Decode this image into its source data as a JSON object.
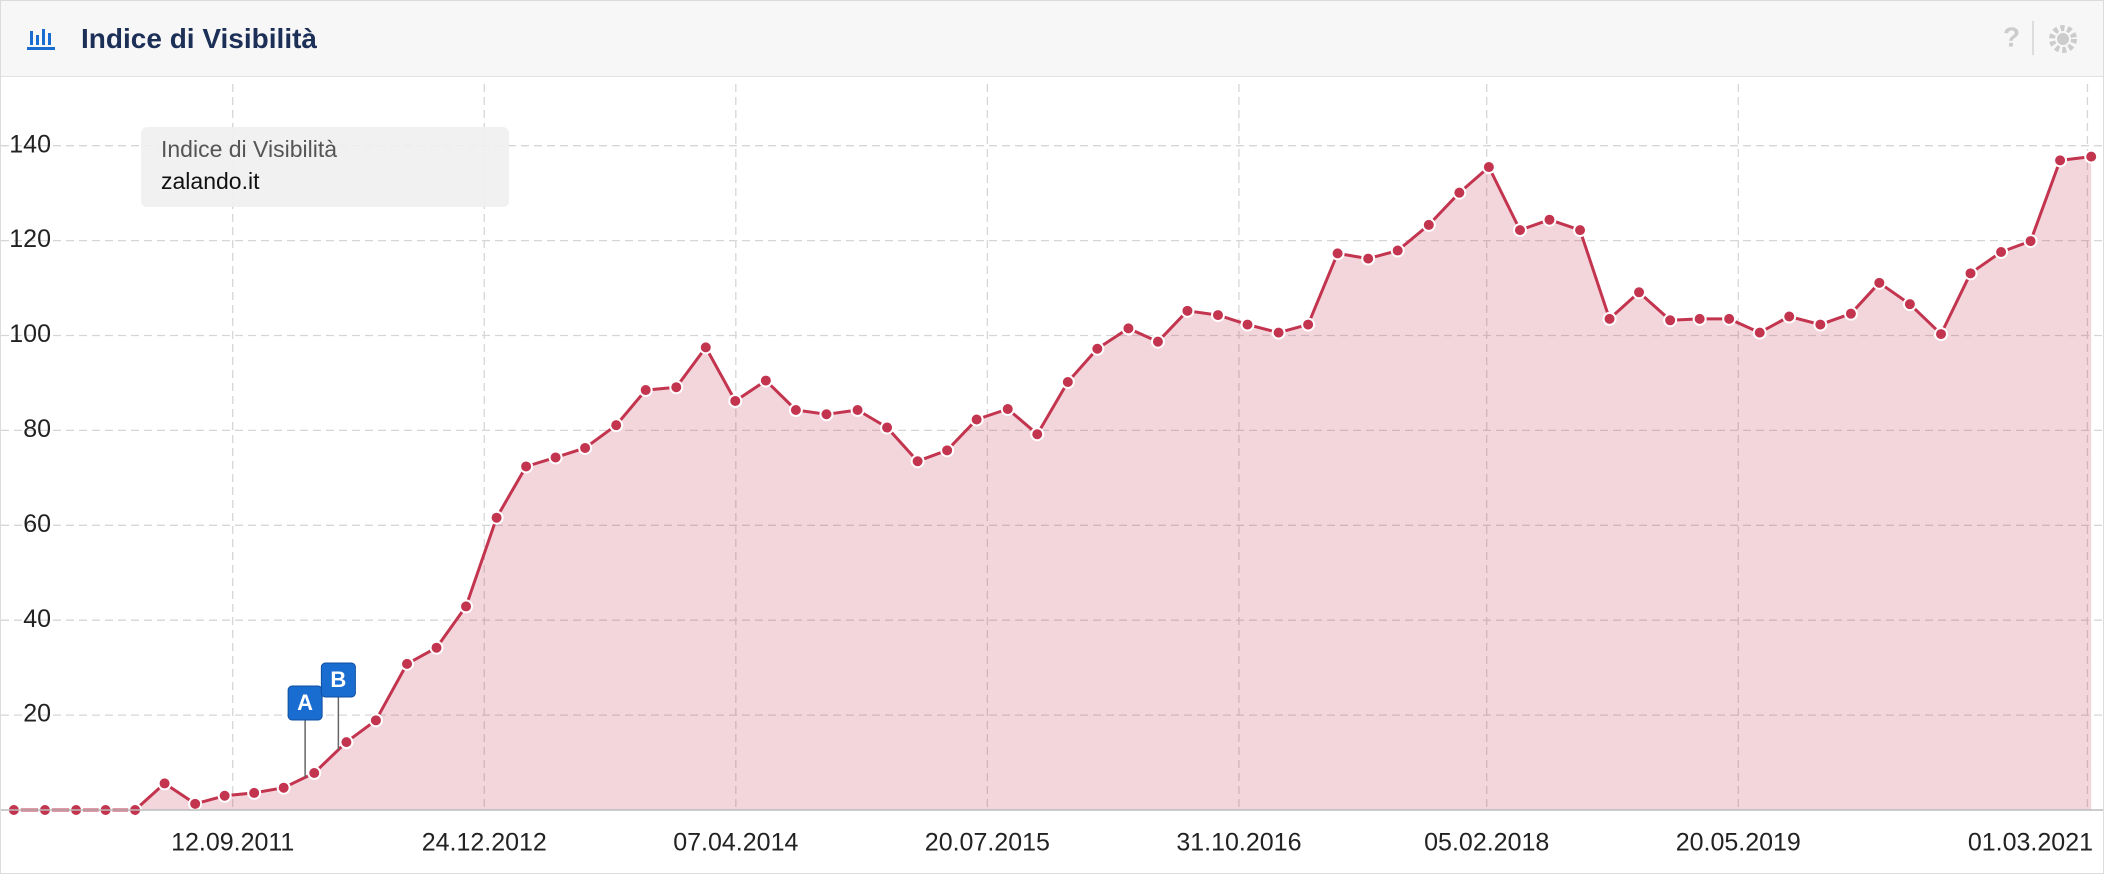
{
  "chart_data": {
    "type": "area",
    "title": "Indice di Visibilità",
    "series": [
      {
        "name": "zalando.it",
        "color": "#c3344f",
        "x": [
          "31.07.2010",
          "27.09.2010",
          "24.11.2010",
          "18.01.2011",
          "14.03.2011",
          "08.05.2011",
          "04.07.2011",
          "28.08.2011",
          "22.10.2011",
          "16.12.2011",
          "11.02.2012",
          "11.04.2012",
          "05.06.2012",
          "02.08.2012",
          "26.09.2012",
          "20.11.2012",
          "16.01.2013",
          "12.03.2013",
          "06.05.2013",
          "30.06.2013",
          "27.08.2013",
          "21.10.2013",
          "17.12.2013",
          "10.02.2014",
          "06.04.2014",
          "02.06.2014",
          "28.07.2014",
          "23.09.2014",
          "20.11.2014",
          "14.01.2015",
          "12.03.2015",
          "06.05.2015",
          "30.06.2015",
          "27.08.2015",
          "21.10.2015",
          "17.12.2015",
          "10.02.2016",
          "08.04.2016",
          "02.06.2016",
          "27.07.2016",
          "22.09.2016",
          "16.11.2016",
          "13.01.2017",
          "09.03.2017",
          "03.05.2017",
          "29.06.2017",
          "23.08.2017",
          "20.10.2017",
          "16.12.2017",
          "09.02.2018",
          "08.04.2018",
          "02.06.2018",
          "29.07.2018",
          "22.09.2018",
          "16.11.2018",
          "13.01.2019",
          "09.03.2019",
          "03.05.2019",
          "29.06.2019",
          "23.08.2019",
          "20.10.2019",
          "16.12.2019",
          "07.02.2020",
          "04.04.2020",
          "01.06.2020",
          "26.07.2020",
          "21.09.2020",
          "15.11.2020",
          "09.01.2021",
          "08.03.2021"
        ],
        "values": [
          0,
          0,
          0,
          0,
          0,
          5.6,
          1.3,
          3.0,
          3.6,
          4.7,
          7.8,
          14.3,
          18.9,
          30.8,
          34.2,
          42.9,
          61.6,
          72.4,
          74.3,
          76.3,
          81.1,
          88.5,
          89.1,
          97.5,
          86.2,
          90.5,
          84.3,
          83.4,
          84.3,
          80.6,
          73.5,
          75.8,
          82.3,
          84.5,
          79.2,
          90.2,
          97.2,
          101.5,
          98.7,
          105.2,
          104.3,
          102.3,
          100.6,
          102.3,
          117.3,
          116.2,
          117.9,
          123.3,
          130.1,
          135.5,
          122.2,
          124.4,
          122.2,
          103.5,
          109.1,
          103.2,
          103.5,
          103.5,
          100.6,
          104.0,
          102.3,
          104.6,
          111.1,
          106.6,
          100.3,
          113.1,
          117.6,
          119.9,
          136.9,
          137.7
        ]
      }
    ],
    "events": [
      {
        "label": "A",
        "x": "25.01.2012"
      },
      {
        "label": "B",
        "x": "27.03.2012"
      }
    ],
    "xlim": [
      "07.07.2010",
      "30.03.2021"
    ],
    "xticks": [
      "12.09.2011",
      "24.12.2012",
      "07.04.2014",
      "20.07.2015",
      "31.10.2016",
      "05.02.2018",
      "20.05.2019",
      "01.03.2021"
    ],
    "ylim": [
      0,
      153
    ],
    "yticks": [
      20,
      40,
      60,
      80,
      100,
      120,
      140
    ],
    "grid": true,
    "legend": "upper left"
  }
}
